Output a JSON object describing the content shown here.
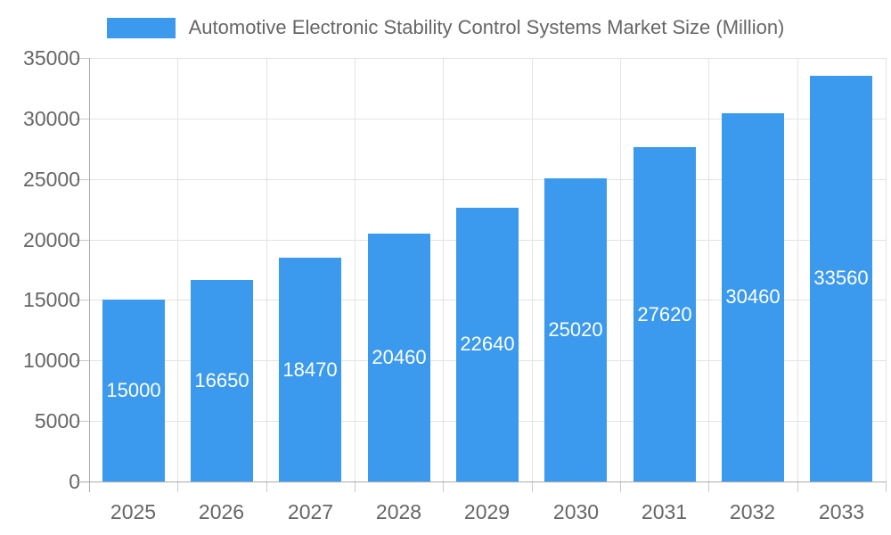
{
  "legend": {
    "label": "Automotive Electronic Stability Control Systems Market Size (Million)"
  },
  "colors": {
    "bar": "#3b9aed",
    "grid": "#e3e3e3",
    "axis_line": "#ababab",
    "tick": "#c9c9c9",
    "axis_text": "#666666",
    "value_label": "#ffffff",
    "background": "#ffffff"
  },
  "chart_data": {
    "type": "bar",
    "title": "Automotive Electronic Stability Control Systems Market Size (Million)",
    "categories": [
      "2025",
      "2026",
      "2027",
      "2028",
      "2029",
      "2030",
      "2031",
      "2032",
      "2033"
    ],
    "values": [
      15000,
      16650,
      18470,
      20460,
      22640,
      25020,
      27620,
      30460,
      33560
    ],
    "value_labels": [
      "15000",
      "16650",
      "18470",
      "20460",
      "22640",
      "25020",
      "27620",
      "30460",
      "33560"
    ],
    "xlabel": "",
    "ylabel": "",
    "ylim": [
      0,
      35000
    ],
    "yticks": [
      0,
      5000,
      10000,
      15000,
      20000,
      25000,
      30000,
      35000
    ],
    "ytick_labels": [
      "0",
      "5000",
      "10000",
      "15000",
      "20000",
      "25000",
      "30000",
      "35000"
    ],
    "grid": true,
    "legend_position": "top",
    "value_label_position": "center-inside"
  }
}
